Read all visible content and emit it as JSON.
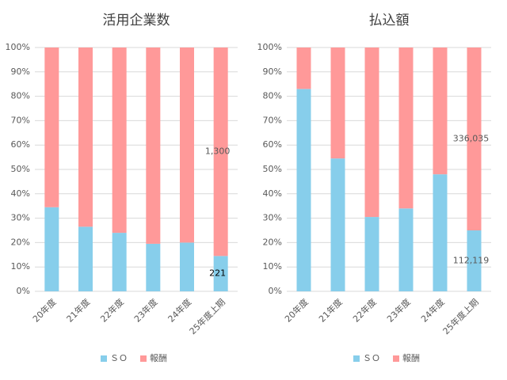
{
  "chart_data": [
    {
      "type": "stacked_bar_100",
      "title": "活用企業数",
      "categories": [
        "20年度",
        "21年度",
        "22年度",
        "23年度",
        "24年度",
        "25年度上期"
      ],
      "series": [
        {
          "name": "ＳＯ",
          "color": "#87ceeb",
          "values": [
            34.5,
            26.5,
            24,
            19.5,
            20,
            14.5
          ]
        },
        {
          "name": "報酬",
          "color": "#ff9999",
          "values": [
            65.5,
            73.5,
            76,
            80.5,
            80,
            85.5
          ]
        }
      ],
      "annotations": [
        "221",
        "1,300"
      ],
      "ylim": [
        0,
        100
      ],
      "yticks": [
        {
          "value": 0,
          "label": "0%"
        },
        {
          "value": 10,
          "label": "10%"
        },
        {
          "value": 20,
          "label": "20%"
        },
        {
          "value": 30,
          "label": "30%"
        },
        {
          "value": 40,
          "label": "40%"
        },
        {
          "value": 50,
          "label": "50%"
        },
        {
          "value": 60,
          "label": "60%"
        },
        {
          "value": 70,
          "label": "70%"
        },
        {
          "value": 80,
          "label": "80%"
        },
        {
          "value": 90,
          "label": "90%"
        },
        {
          "value": 100,
          "label": "100%"
        }
      ],
      "grid": true,
      "legend": "bottom"
    },
    {
      "type": "stacked_bar_100",
      "title": "払込額",
      "categories": [
        "20年度",
        "21年度",
        "22年度",
        "23年度",
        "24年度",
        "25年度上期"
      ],
      "series": [
        {
          "name": "ＳＯ",
          "color": "#87ceeb",
          "values": [
            83,
            54.5,
            30.5,
            34,
            48,
            25
          ]
        },
        {
          "name": "報酬",
          "color": "#ff9999",
          "values": [
            17,
            45.5,
            69.5,
            66,
            52,
            75
          ]
        }
      ],
      "annotations": [
        "112,119",
        "336,035"
      ],
      "ylim": [
        0,
        100
      ],
      "yticks": [
        {
          "value": 0,
          "label": "0%"
        },
        {
          "value": 10,
          "label": "10%"
        },
        {
          "value": 20,
          "label": "20%"
        },
        {
          "value": 30,
          "label": "30%"
        },
        {
          "value": 40,
          "label": "40%"
        },
        {
          "value": 50,
          "label": "50%"
        },
        {
          "value": 60,
          "label": "60%"
        },
        {
          "value": 70,
          "label": "70%"
        },
        {
          "value": 80,
          "label": "80%"
        },
        {
          "value": 90,
          "label": "90%"
        },
        {
          "value": 100,
          "label": "100%"
        }
      ],
      "grid": true,
      "legend": "bottom"
    }
  ]
}
